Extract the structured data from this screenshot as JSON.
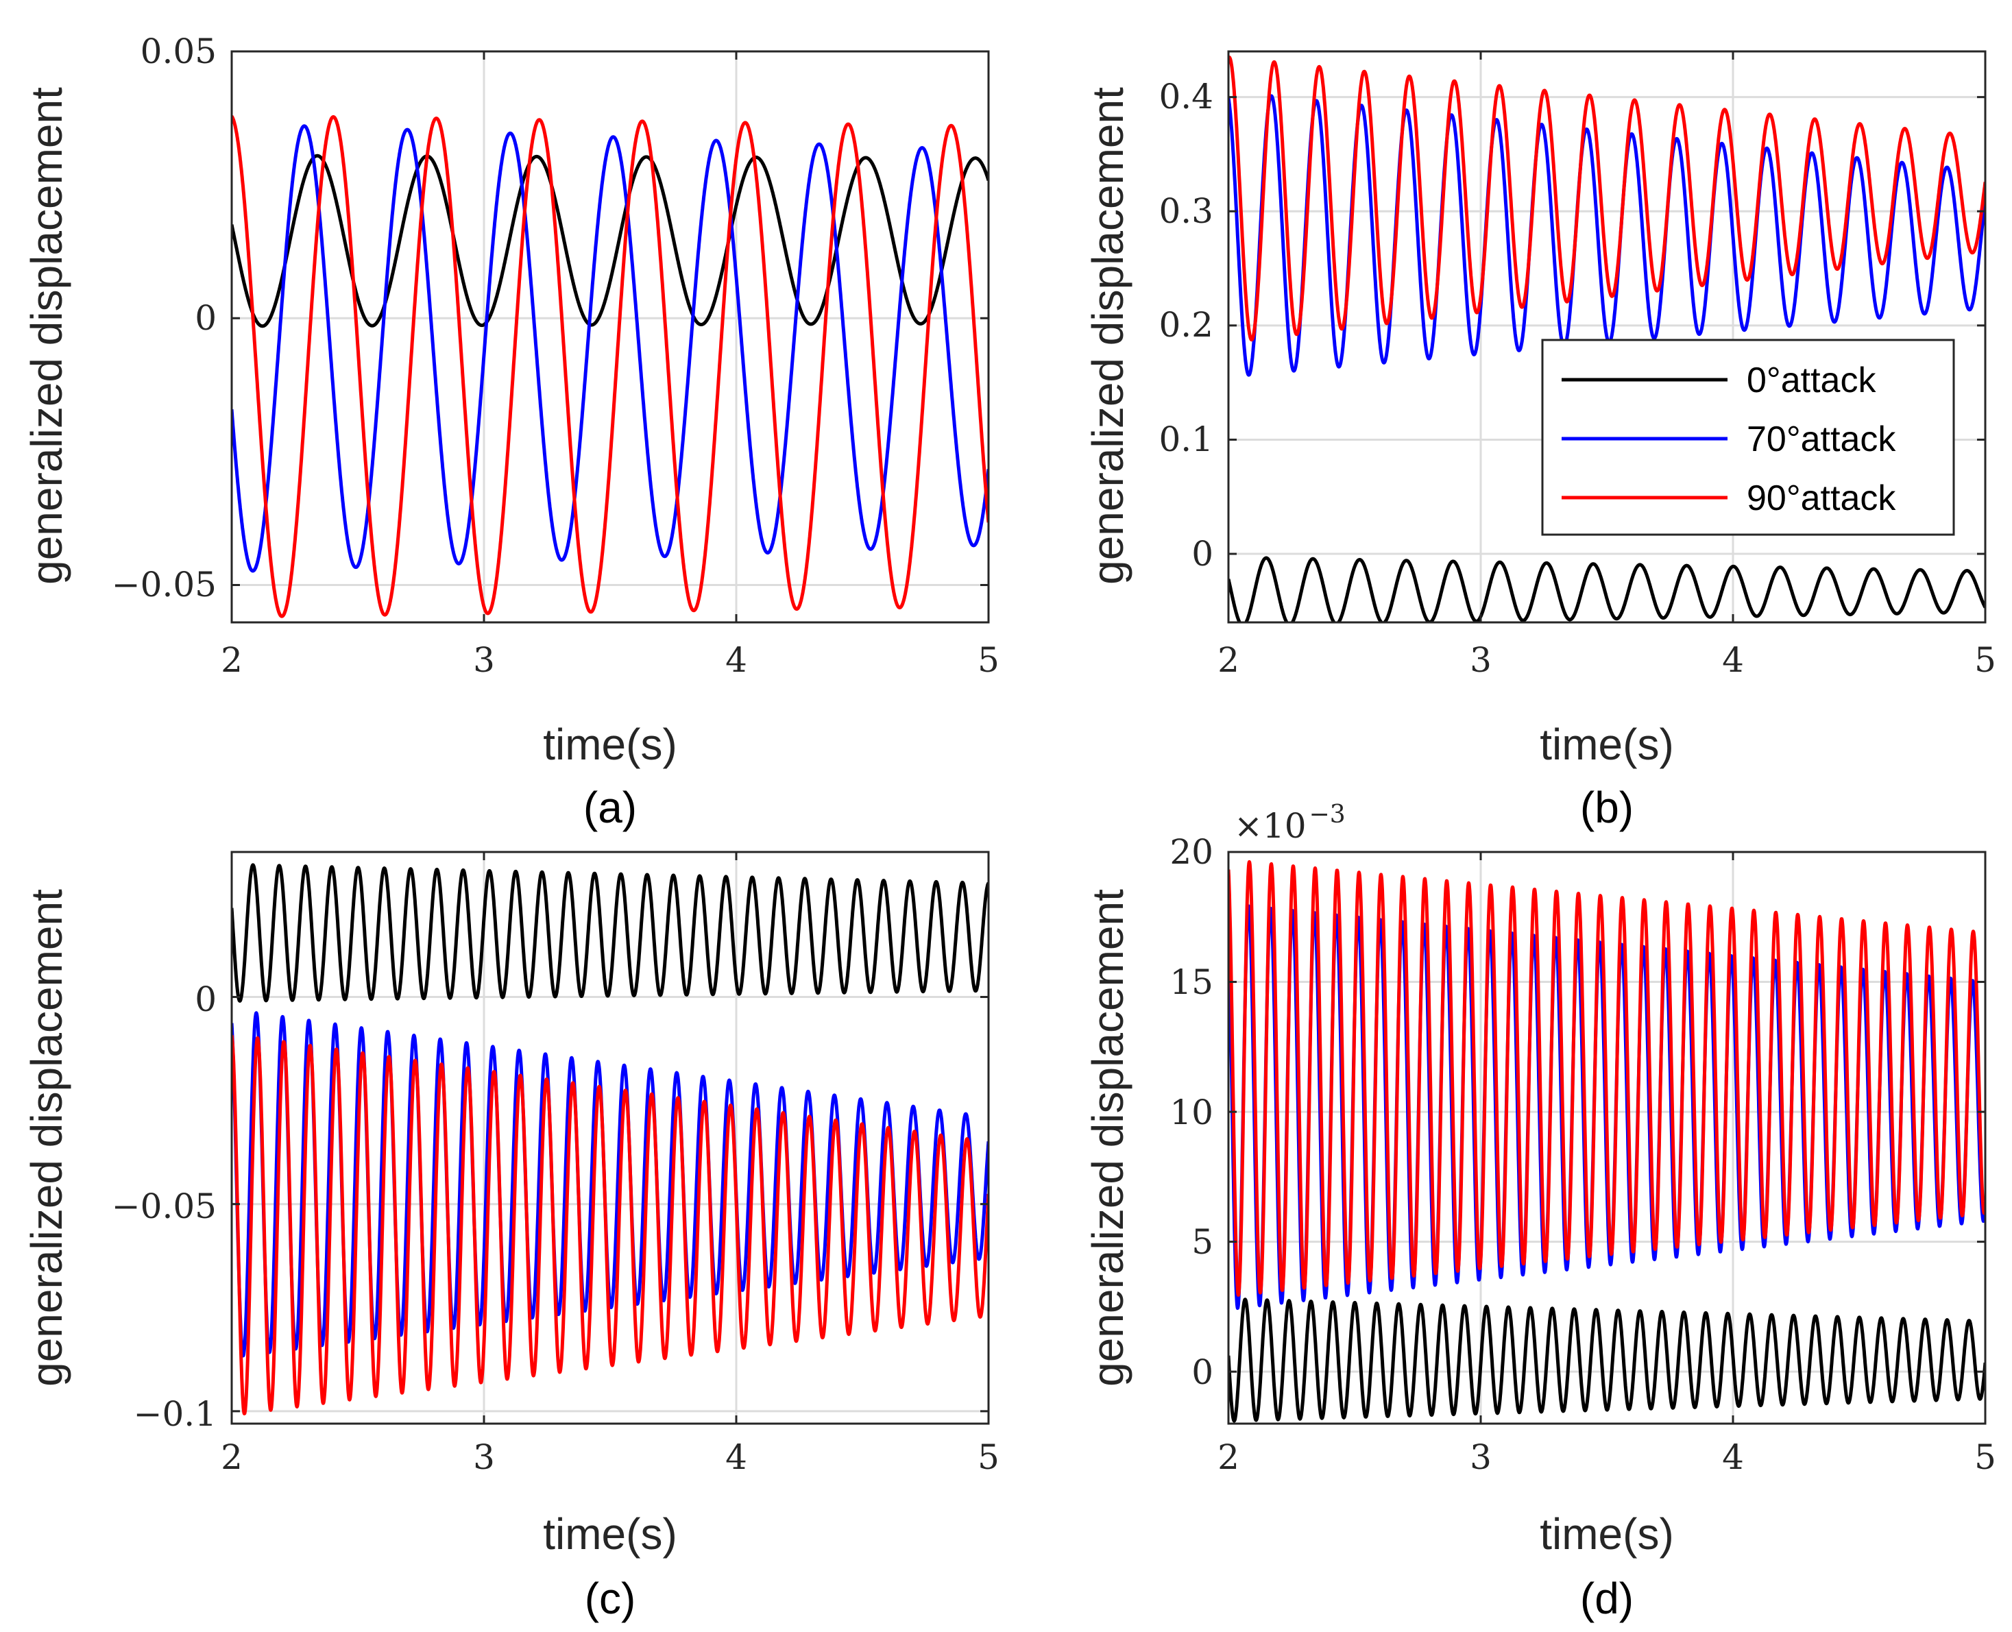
{
  "colors": {
    "0deg": "#000000",
    "70deg": "#0000ff",
    "90deg": "#ff0000"
  },
  "chart_data": [
    {
      "id": "a",
      "type": "line",
      "panel_label": "(a)",
      "xlabel": "time(s)",
      "ylabel": "generalized displacement",
      "xlim": [
        2,
        5
      ],
      "ylim": [
        -0.057,
        0.05
      ],
      "xticks": [
        2,
        3,
        4,
        5
      ],
      "xtick_labels": [
        "2",
        "3",
        "4",
        "5"
      ],
      "yticks": [
        -0.05,
        0,
        0.05
      ],
      "ytick_labels": [
        "−0.05",
        "0",
        "0.05"
      ],
      "grid": true,
      "series": [
        {
          "name": "0°attack",
          "color": "#000000",
          "model": {
            "offset": 0.0145,
            "offset_end": 0.0145,
            "amp": 0.016,
            "amp_end": 0.0155,
            "freq": 2.3,
            "phase": 1.38
          }
        },
        {
          "name": "70°attack",
          "color": "#0000ff",
          "model": {
            "offset": -0.0055,
            "offset_end": -0.0055,
            "amp": 0.042,
            "amp_end": 0.037,
            "freq": 2.45,
            "phase": 1.85
          }
        },
        {
          "name": "90°attack",
          "color": "#ff0000",
          "model": {
            "offset": -0.009,
            "offset_end": -0.009,
            "amp": 0.047,
            "amp_end": 0.045,
            "freq": 2.45,
            "phase": 0.08
          }
        }
      ]
    },
    {
      "id": "b",
      "type": "line",
      "panel_label": "(b)",
      "xlabel": "time(s)",
      "ylabel": "generalized displacement",
      "xlim": [
        2,
        5
      ],
      "ylim": [
        -0.06,
        0.44
      ],
      "xticks": [
        2,
        3,
        4,
        5
      ],
      "xtick_labels": [
        "2",
        "3",
        "4",
        "5"
      ],
      "yticks": [
        0,
        0.1,
        0.2,
        0.3,
        0.4
      ],
      "ytick_labels": [
        "0",
        "0.1",
        "0.2",
        "0.3",
        "0.4"
      ],
      "grid": true,
      "legend": {
        "location": "right",
        "entries": [
          "0°attack",
          "70°attack",
          "90°attack"
        ]
      },
      "series": [
        {
          "name": "0°attack",
          "color": "#000000",
          "model": {
            "offset": -0.033,
            "offset_end": -0.033,
            "amp": 0.03,
            "amp_end": 0.018,
            "freq": 5.4,
            "phase": 1.2
          }
        },
        {
          "name": "70°attack",
          "color": "#0000ff",
          "model": {
            "offset": 0.28,
            "offset_end": 0.275,
            "amp": 0.125,
            "amp_end": 0.06,
            "freq": 5.6,
            "phase": 0.3
          }
        },
        {
          "name": "90°attack",
          "color": "#ff0000",
          "model": {
            "offset": 0.31,
            "offset_end": 0.315,
            "amp": 0.125,
            "amp_end": 0.05,
            "freq": 5.6,
            "phase": -0.1
          }
        }
      ]
    },
    {
      "id": "c",
      "type": "line",
      "panel_label": "(c)",
      "xlabel": "time(s)",
      "ylabel": "generalized displacement",
      "xlim": [
        2,
        5
      ],
      "ylim": [
        -0.103,
        0.035
      ],
      "xticks": [
        2,
        3,
        4,
        5
      ],
      "xtick_labels": [
        "2",
        "3",
        "4",
        "5"
      ],
      "yticks": [
        -0.1,
        -0.05,
        0
      ],
      "ytick_labels": [
        "−0.1",
        "−0.05",
        "0"
      ],
      "grid": true,
      "series": [
        {
          "name": "0°attack",
          "color": "#000000",
          "model": {
            "offset": 0.0155,
            "offset_end": 0.0145,
            "amp": 0.0165,
            "amp_end": 0.013,
            "freq": 9.6,
            "phase": 1.2
          }
        },
        {
          "name": "70°attack",
          "color": "#0000ff",
          "model": {
            "offset": -0.045,
            "offset_end": -0.046,
            "amp": 0.042,
            "amp_end": 0.017,
            "freq": 9.6,
            "phase": 0.4
          }
        },
        {
          "name": "90°attack",
          "color": "#ff0000",
          "model": {
            "offset": -0.055,
            "offset_end": -0.056,
            "amp": 0.046,
            "amp_end": 0.021,
            "freq": 9.6,
            "phase": 0.1
          }
        }
      ]
    },
    {
      "id": "d",
      "type": "line",
      "panel_label": "(d)",
      "xlabel": "time(s)",
      "ylabel": "generalized displacement",
      "exponent_label": "×10",
      "exponent_power": "−3",
      "xlim": [
        2,
        5
      ],
      "ylim": [
        -2.0,
        20.0
      ],
      "xticks": [
        2,
        3,
        4,
        5
      ],
      "xtick_labels": [
        "2",
        "3",
        "4",
        "5"
      ],
      "yticks": [
        0,
        5,
        10,
        15,
        20
      ],
      "ytick_labels": [
        "0",
        "5",
        "10",
        "15",
        "20"
      ],
      "grid": true,
      "series": [
        {
          "name": "0°attack",
          "color": "#000000",
          "model": {
            "offset": 0.45,
            "offset_end": 0.45,
            "amp": 2.35,
            "amp_end": 1.5,
            "freq": 11.5,
            "phase": 1.5
          }
        },
        {
          "name": "70°attack",
          "color": "#0000ff",
          "model": {
            "offset": 10.2,
            "offset_end": 10.4,
            "amp": 7.8,
            "amp_end": 4.6,
            "freq": 11.5,
            "phase": 0.5
          }
        },
        {
          "name": "90°attack",
          "color": "#ff0000",
          "model": {
            "offset": 11.3,
            "offset_end": 11.5,
            "amp": 8.4,
            "amp_end": 5.4,
            "freq": 11.5,
            "phase": 0.3
          }
        }
      ]
    }
  ]
}
